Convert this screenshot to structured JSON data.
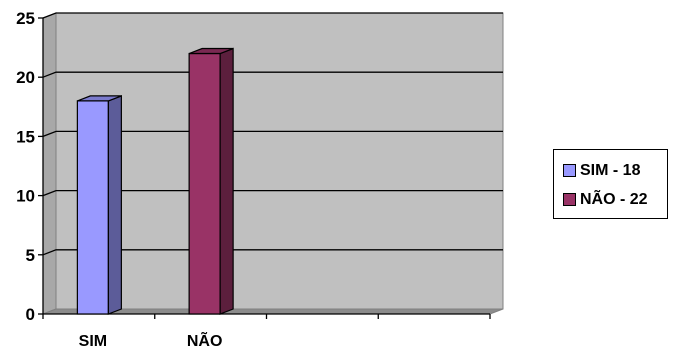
{
  "chart_data": {
    "type": "bar",
    "categories": [
      "SIM",
      "NÃO",
      "",
      ""
    ],
    "series": [
      {
        "name": "SIM - 18",
        "category": "SIM",
        "value": 18,
        "color": "#9999ff",
        "side_color": "#5c5c99",
        "top_color": "#7a7acc"
      },
      {
        "name": "NÃO - 22",
        "category": "NÃO",
        "value": 22,
        "color": "#993366",
        "side_color": "#5c1f3d",
        "top_color": "#7a2952"
      }
    ],
    "y_ticks": [
      0,
      5,
      10,
      15,
      20,
      25
    ],
    "ylim": [
      0,
      25
    ],
    "grid": true,
    "three_d": true,
    "plot_background": "#c0c0c0",
    "legend_position": "right"
  }
}
